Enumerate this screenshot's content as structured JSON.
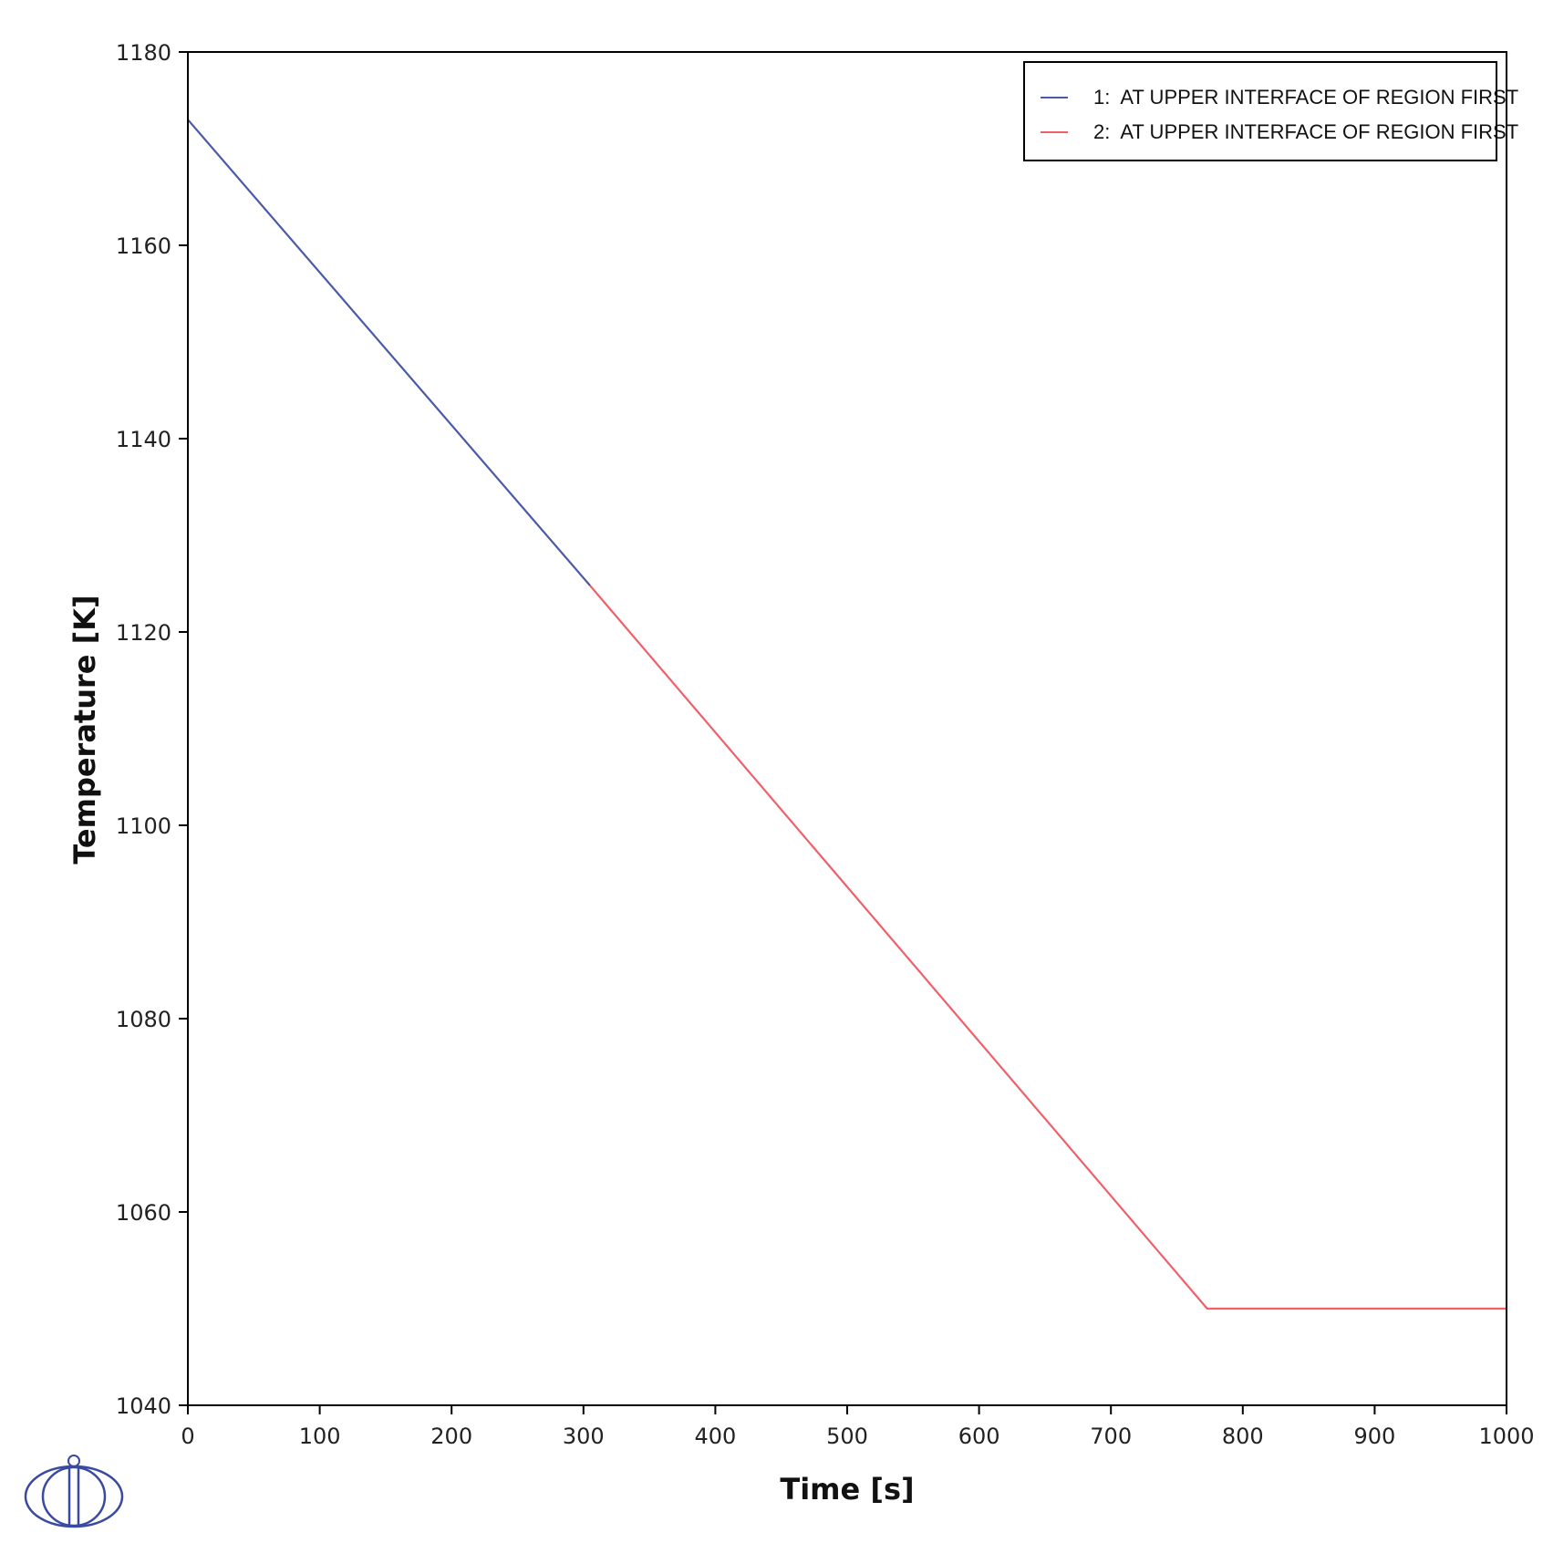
{
  "chart_data": {
    "type": "line",
    "xlabel": "Time [s]",
    "ylabel": "Temperature [K]",
    "xlim": [
      0,
      1000
    ],
    "ylim": [
      1040,
      1180
    ],
    "x_ticks": [
      0,
      100,
      200,
      300,
      400,
      500,
      600,
      700,
      800,
      900,
      1000
    ],
    "y_ticks": [
      1040,
      1060,
      1080,
      1100,
      1120,
      1140,
      1160,
      1180
    ],
    "grid": false,
    "legend_position": "top-right",
    "series": [
      {
        "name": "1:  AT UPPER INTERFACE OF REGION FIRST",
        "color": "#4a5aa8",
        "x": [
          0,
          305
        ],
        "y": [
          1173,
          1124.8
        ]
      },
      {
        "name": "2:  AT UPPER INTERFACE OF REGION FIRST",
        "color": "#f0606a",
        "x": [
          305,
          773,
          1000
        ],
        "y": [
          1124.8,
          1050,
          1050
        ]
      }
    ]
  },
  "logo": {
    "name": "ellipse-logo-icon",
    "color": "#3a4aa0"
  }
}
